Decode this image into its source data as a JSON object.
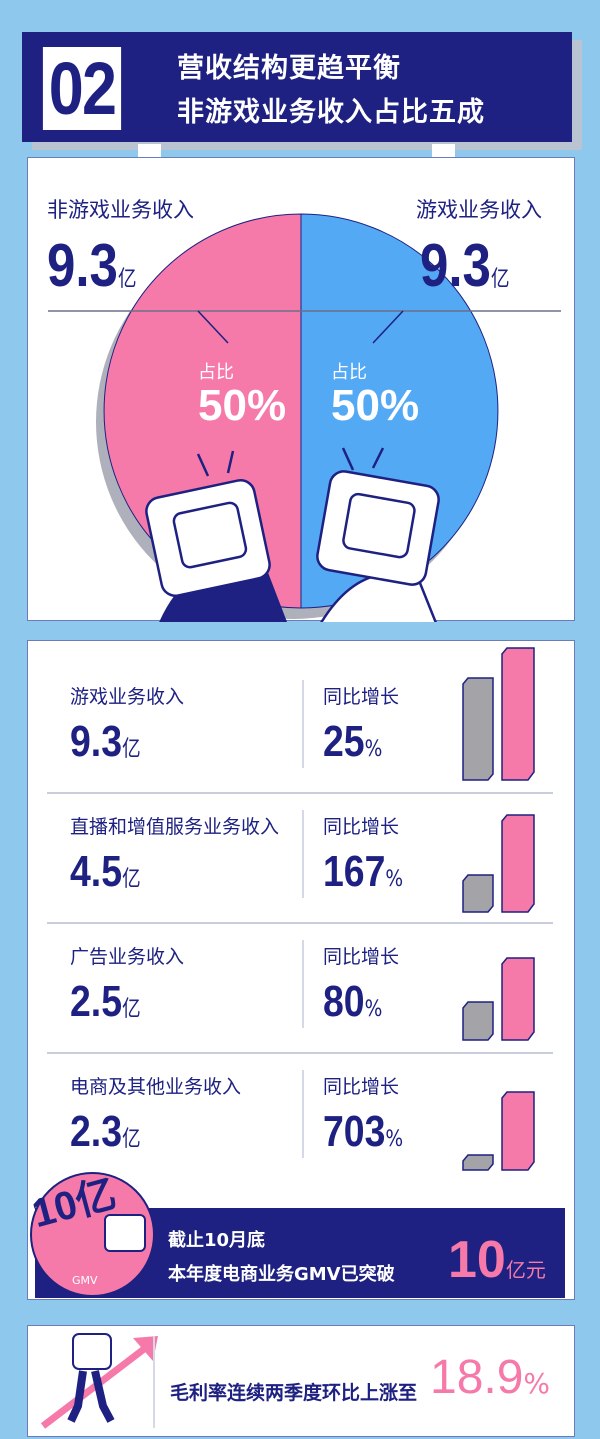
{
  "header": {
    "number": "02",
    "title_line1": "营收结构更趋平衡",
    "title_line2": "非游戏业务收入占比五成"
  },
  "pie": {
    "left": {
      "label": "非游戏业务收入",
      "value": "9.3",
      "unit": "亿",
      "share_label": "占比",
      "share": "50%",
      "color": "#f57aaa"
    },
    "right": {
      "label": "游戏业务收入",
      "value": "9.3",
      "unit": "亿",
      "share_label": "占比",
      "share": "50%",
      "color": "#54a9f5"
    }
  },
  "rows": [
    {
      "label": "游戏业务收入",
      "value": "9.3",
      "unit": "亿",
      "growth_label": "同比增长",
      "growth": "25",
      "pct": "%"
    },
    {
      "label": "直播和增值服务业务收入",
      "value": "4.5",
      "unit": "亿",
      "growth_label": "同比增长",
      "growth": "167",
      "pct": "%"
    },
    {
      "label": "广告业务收入",
      "value": "2.5",
      "unit": "亿",
      "growth_label": "同比增长",
      "growth": "80",
      "pct": "%"
    },
    {
      "label": "电商及其他业务收入",
      "value": "2.3",
      "unit": "亿",
      "growth_label": "同比增长",
      "growth": "703",
      "pct": "%"
    }
  ],
  "gmv": {
    "badge": "10亿",
    "badge_sub": "GMV",
    "line1": "截止10月底",
    "line2": "本年度电商业务GMV已突破",
    "value": "10",
    "unit": "亿元"
  },
  "margin": {
    "text": "毛利率连续两季度环比上涨至",
    "value": "18.9",
    "pct": "%"
  },
  "colors": {
    "navy": "#1e2182",
    "pink": "#f57aaa",
    "blue": "#54a9f5",
    "gray": "#a3a3a8",
    "background": "#8ec8ec"
  }
}
